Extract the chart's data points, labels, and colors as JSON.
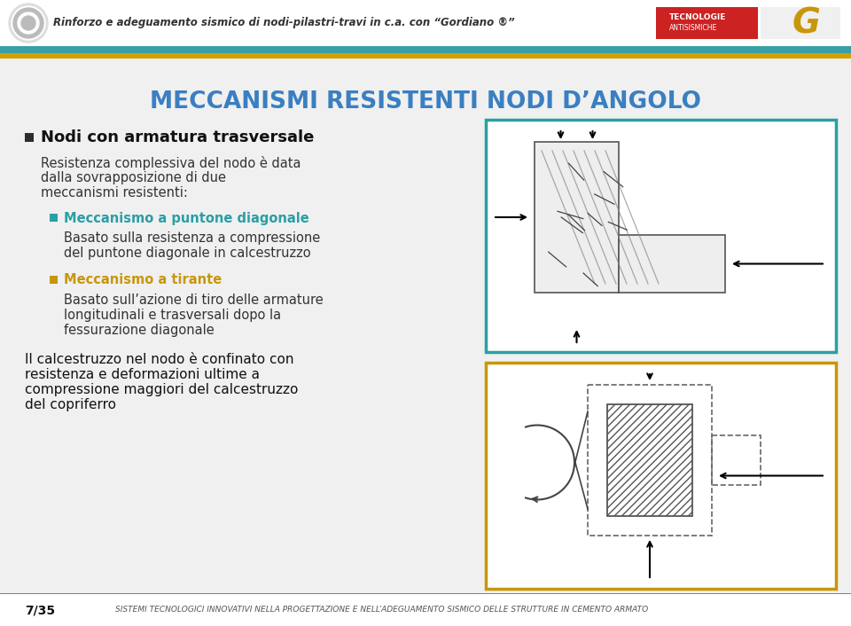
{
  "bg_color": "#f0f0f0",
  "header_bg": "#ffffff",
  "header_text": "Rinforzo e adeguamento sismico di nodi-pilastri-travi in c.a. con “Gordiano ®”",
  "header_fontsize": 8.5,
  "stripe_teal": "#3a9fa5",
  "stripe_gold": "#d4a000",
  "title_text": "MECCANISMI RESISTENTI NODI D’ANGOLO",
  "title_color": "#3a7fc1",
  "title_fontsize": 19,
  "bullet_color_dark": "#2c2c2c",
  "teal_color": "#2a9fa5",
  "gold_color": "#c8960a",
  "section_heading": "Nodi con armatura trasversale",
  "section_heading_fontsize": 13,
  "body_fontsize": 10.5,
  "footer_text": "7/35",
  "footer_subtext": "SISTEMI TECNOLOGICI INNOVATIVI NELLA PROGETTAZIONE E NELL’ADEGUAMENTO SISMICO DELLE STRUTTURE IN CEMENTO ARMATO",
  "footer_fontsize": 6.5,
  "frame1_color": "#2a9fa5",
  "frame2_color": "#c8960a"
}
